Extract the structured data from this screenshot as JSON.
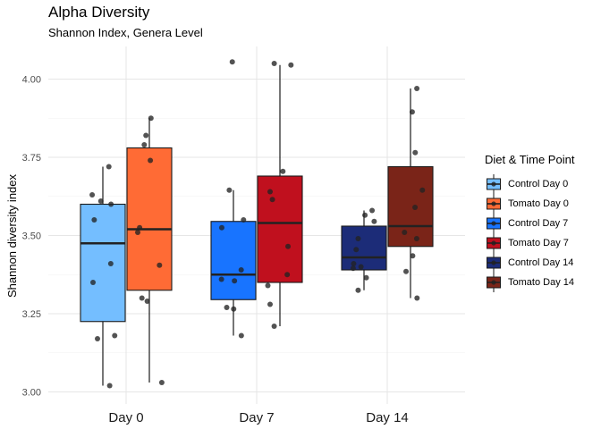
{
  "chart_data": {
    "type": "box",
    "title": "Alpha Diversity",
    "subtitle": "Shannon Index, Genera Level",
    "xlabel": "",
    "ylabel": "Shannon diversity index",
    "ylim": [
      2.96,
      4.1
    ],
    "yticks": [
      3.0,
      3.25,
      3.5,
      3.75,
      4.0
    ],
    "ytick_labels": [
      "3.00",
      "3.25",
      "3.50",
      "3.75",
      "4.00"
    ],
    "categories": [
      "Day 0",
      "Day 7",
      "Day 14"
    ],
    "grid": true,
    "legend": {
      "title": "Diet & Time Point",
      "position": "right"
    },
    "series": [
      {
        "name": "Control Day 0",
        "category": "Day 0",
        "color": "#74BEFF",
        "box": {
          "whisker_low": 3.02,
          "q1": 3.225,
          "median": 3.475,
          "q3": 3.6,
          "whisker_high": 3.72
        },
        "points": [
          3.72,
          3.63,
          3.61,
          3.6,
          3.55,
          3.41,
          3.35,
          3.18,
          3.17,
          3.02
        ]
      },
      {
        "name": "Tomato Day 0",
        "category": "Day 0",
        "color": "#FF6B35",
        "box": {
          "whisker_low": 3.03,
          "q1": 3.325,
          "median": 3.52,
          "q3": 3.78,
          "whisker_high": 3.875
        },
        "points": [
          3.875,
          3.82,
          3.79,
          3.74,
          3.525,
          3.51,
          3.405,
          3.3,
          3.29,
          3.03
        ]
      },
      {
        "name": "Control Day 7",
        "category": "Day 7",
        "color": "#1874FF",
        "box": {
          "whisker_low": 3.18,
          "q1": 3.295,
          "median": 3.375,
          "q3": 3.545,
          "whisker_high": 3.645
        },
        "points": [
          4.055,
          3.645,
          3.55,
          3.525,
          3.39,
          3.36,
          3.355,
          3.27,
          3.265,
          3.18
        ]
      },
      {
        "name": "Tomato Day 7",
        "category": "Day 7",
        "color": "#C0101E",
        "box": {
          "whisker_low": 3.21,
          "q1": 3.35,
          "median": 3.54,
          "q3": 3.69,
          "whisker_high": 4.045
        },
        "points": [
          4.05,
          4.045,
          3.705,
          3.64,
          3.615,
          3.465,
          3.375,
          3.34,
          3.28,
          3.21
        ]
      },
      {
        "name": "Control Day 14",
        "category": "Day 14",
        "color": "#1C2C78",
        "box": {
          "whisker_low": 3.325,
          "q1": 3.39,
          "median": 3.43,
          "q3": 3.53,
          "whisker_high": 3.58
        },
        "points": [
          3.58,
          3.565,
          3.545,
          3.49,
          3.455,
          3.41,
          3.4,
          3.395,
          3.365,
          3.325
        ]
      },
      {
        "name": "Tomato Day 14",
        "category": "Day 14",
        "color": "#7A2418",
        "box": {
          "whisker_low": 3.3,
          "q1": 3.465,
          "median": 3.53,
          "q3": 3.72,
          "whisker_high": 3.97
        },
        "points": [
          3.97,
          3.895,
          3.765,
          3.645,
          3.59,
          3.51,
          3.49,
          3.435,
          3.385,
          3.3
        ]
      }
    ]
  }
}
